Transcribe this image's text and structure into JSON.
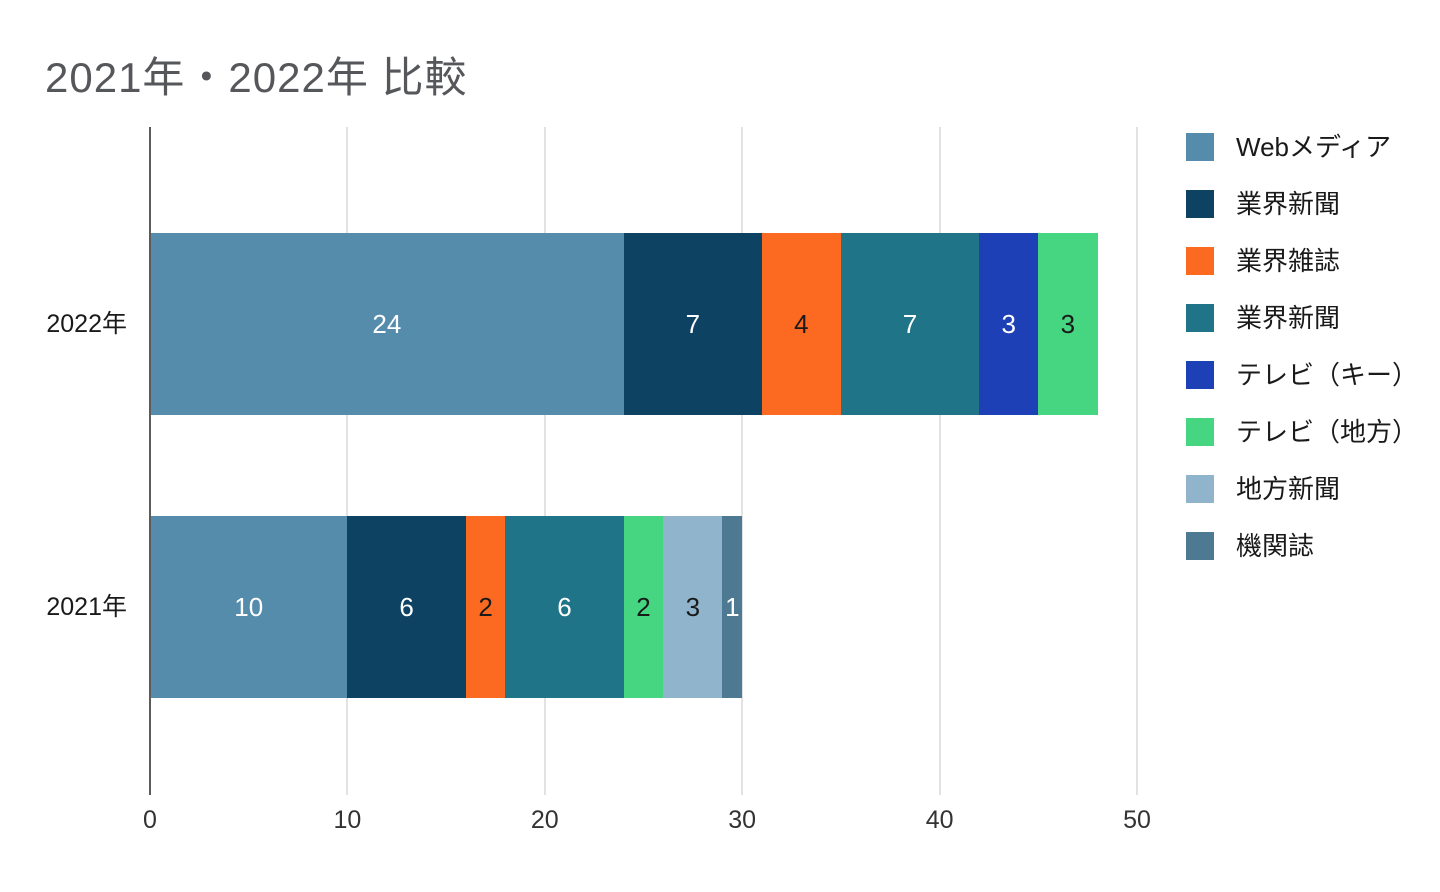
{
  "chart_data": {
    "type": "bar",
    "orientation": "horizontal",
    "stacked": true,
    "title": "2021年・2022年 比較",
    "categories": [
      "2022年",
      "2021年"
    ],
    "series": [
      {
        "name": "Webメディア",
        "color": "#558CAC",
        "values": [
          24,
          10
        ]
      },
      {
        "name": "業界新聞",
        "color": "#0D4263",
        "values": [
          7,
          6
        ]
      },
      {
        "name": "業界雑誌",
        "color": "#FB6A20",
        "values": [
          4,
          2
        ]
      },
      {
        "name": "業界新聞",
        "color": "#1F7488",
        "values": [
          7,
          6
        ]
      },
      {
        "name": "テレビ（キー）",
        "color": "#1E40B7",
        "values": [
          3,
          0
        ]
      },
      {
        "name": "テレビ（地方）",
        "color": "#46D581",
        "values": [
          3,
          2
        ]
      },
      {
        "name": "地方新聞",
        "color": "#8FB4CC",
        "values": [
          0,
          3
        ]
      },
      {
        "name": "機関誌",
        "color": "#4D7A92",
        "values": [
          0,
          1
        ]
      }
    ],
    "totals": [
      48,
      30
    ],
    "xlim": [
      0,
      50
    ],
    "xticks": [
      0,
      10,
      20,
      30,
      40,
      50
    ],
    "grid": true,
    "legend_position": "right",
    "colors": {
      "background": "#FFFFFF",
      "title_text": "#56575A",
      "tick_label_text": "#333333",
      "category_label_text": "#1A1A1A",
      "legend_text": "#1A1A1A",
      "zero_axis_line": "#5C5C5C",
      "gridline": "#E2E2E2",
      "label_on_dark": "#FFFFFF",
      "label_on_light": "#1A1A1A"
    }
  }
}
